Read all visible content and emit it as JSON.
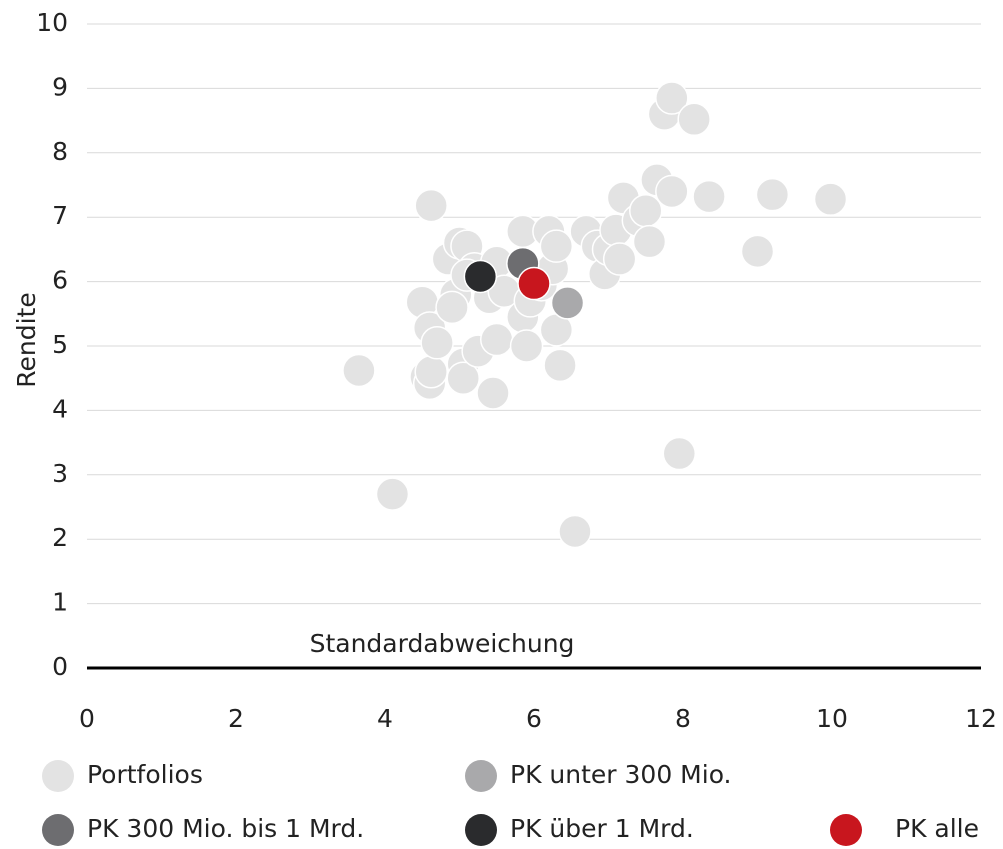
{
  "chart_data": {
    "type": "scatter",
    "xlabel": "Standardabweichung",
    "ylabel": "Rendite",
    "xlim": [
      0,
      12
    ],
    "xticks": [
      0,
      2,
      4,
      6,
      8,
      10,
      12
    ],
    "ylim": [
      0,
      10
    ],
    "yticks": [
      0,
      1,
      2,
      3,
      4,
      5,
      6,
      7,
      8,
      9,
      10
    ],
    "grid": true,
    "series": [
      {
        "name": "Portfolios",
        "color": "#e3e3e3",
        "x": [
          3.65,
          4.1,
          4.62,
          4.5,
          4.55,
          4.6,
          4.62,
          4.6,
          4.7,
          4.85,
          4.95,
          4.9,
          5.0,
          5.05,
          5.05,
          5.1,
          5.2,
          5.25,
          5.4,
          5.45,
          5.5,
          5.5,
          5.6,
          5.85,
          5.85,
          5.9,
          5.95,
          6.1,
          6.2,
          6.25,
          6.3,
          6.3,
          6.35,
          6.55,
          6.7,
          6.85,
          6.95,
          7.0,
          7.1,
          7.15,
          7.2,
          7.4,
          7.5,
          7.55,
          7.65,
          7.75,
          7.85,
          7.85,
          7.95,
          8.15,
          8.35,
          9.0,
          9.2,
          9.98,
          5.1
        ],
        "values": [
          4.62,
          2.7,
          7.18,
          5.68,
          4.52,
          4.42,
          4.6,
          5.28,
          5.05,
          6.35,
          5.8,
          5.6,
          6.6,
          4.72,
          4.5,
          6.55,
          6.2,
          4.92,
          5.75,
          4.27,
          6.3,
          5.1,
          5.85,
          6.78,
          5.45,
          5.0,
          5.7,
          5.95,
          6.78,
          6.2,
          6.55,
          5.25,
          4.7,
          2.12,
          6.78,
          6.55,
          6.12,
          6.5,
          6.8,
          6.35,
          7.3,
          6.95,
          7.1,
          6.62,
          7.58,
          8.6,
          8.85,
          7.4,
          3.33,
          8.52,
          7.32,
          6.47,
          7.35,
          7.28,
          6.1
        ]
      },
      {
        "name": "PK unter 300 Mio.",
        "color": "#a9a9ab",
        "x": [
          6.45
        ],
        "values": [
          5.67
        ]
      },
      {
        "name": "PK 300 Mio. bis 1 Mrd.",
        "color": "#6d6d70",
        "x": [
          5.85
        ],
        "values": [
          6.28
        ]
      },
      {
        "name": "PK über 1 Mrd.",
        "color": "#2a2b2d",
        "x": [
          5.28
        ],
        "values": [
          6.08
        ]
      },
      {
        "name": "PK alle",
        "color": "#c8161e",
        "x": [
          6.0
        ],
        "values": [
          5.97
        ]
      }
    ]
  }
}
